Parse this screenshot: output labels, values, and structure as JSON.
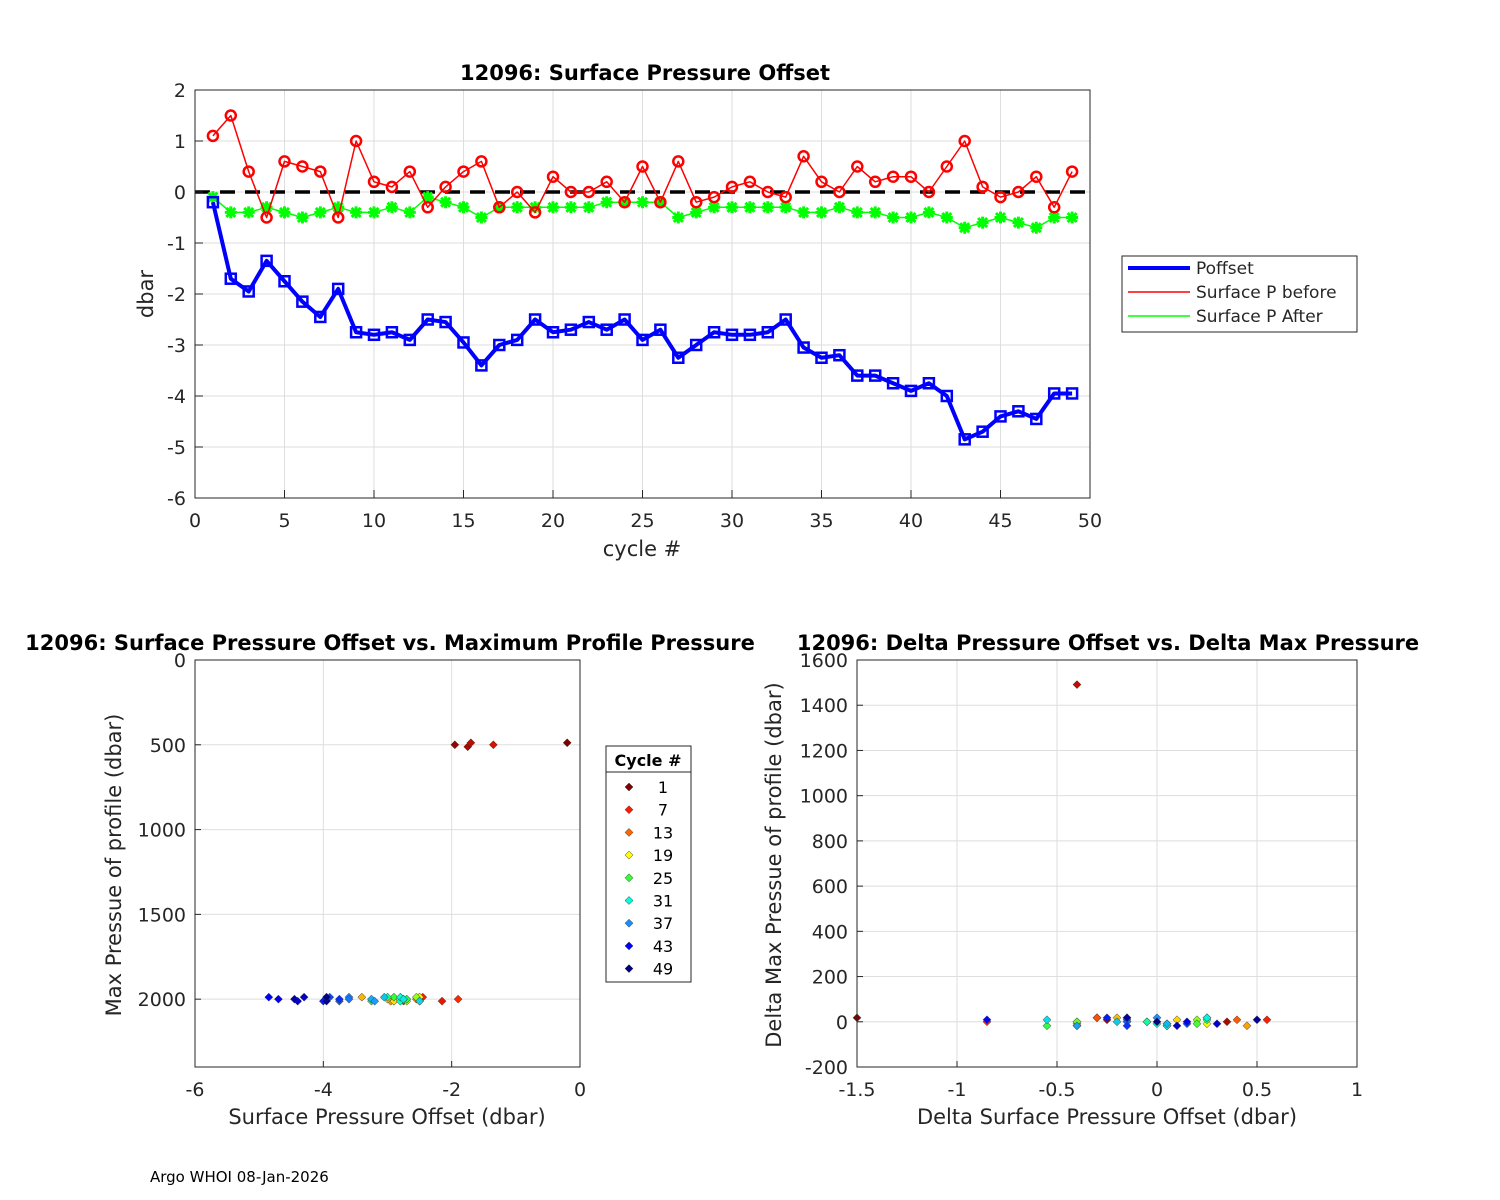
{
  "footer": "Argo WHOI 08-Jan-2026",
  "colors": {
    "poffset": "#0000ff",
    "before": "#ff0000",
    "after": "#00ff00",
    "zero_line": "#000000",
    "grid": "#dedede"
  },
  "chart_data": [
    {
      "id": "top",
      "type": "line",
      "title": "12096: Surface Pressure Offset",
      "xlabel": "cycle #",
      "ylabel": "dbar",
      "xlim": [
        0,
        50
      ],
      "ylim": [
        -6,
        2
      ],
      "xticks": [
        0,
        5,
        10,
        15,
        20,
        25,
        30,
        35,
        40,
        45,
        50
      ],
      "yticks": [
        2,
        1,
        0,
        -1,
        -2,
        -3,
        -4,
        -5,
        -6
      ],
      "legend": [
        "Poffset",
        "Surface P before",
        "Surface P After"
      ],
      "x": [
        1,
        2,
        3,
        4,
        5,
        6,
        7,
        8,
        9,
        10,
        11,
        12,
        13,
        14,
        15,
        16,
        17,
        18,
        19,
        20,
        21,
        22,
        23,
        24,
        25,
        26,
        27,
        28,
        29,
        30,
        31,
        32,
        33,
        34,
        35,
        36,
        37,
        38,
        39,
        40,
        41,
        42,
        43,
        44,
        45,
        46,
        47,
        48,
        49
      ],
      "series": [
        {
          "name": "Poffset",
          "values": [
            -0.2,
            -1.7,
            -1.95,
            -1.35,
            -1.75,
            -2.15,
            -2.45,
            -1.9,
            -2.75,
            -2.8,
            -2.75,
            -2.9,
            -2.5,
            -2.55,
            -2.95,
            -3.4,
            -3.0,
            -2.9,
            -2.5,
            -2.75,
            -2.7,
            -2.55,
            -2.7,
            -2.5,
            -2.9,
            -2.7,
            -3.25,
            -3.0,
            -2.75,
            -2.8,
            -2.8,
            -2.75,
            -2.5,
            -3.05,
            -3.25,
            -3.2,
            -3.6,
            -3.6,
            -3.75,
            -3.9,
            -3.75,
            -4.0,
            -4.85,
            -4.7,
            -4.4,
            -4.3,
            -4.45,
            -3.95,
            -3.95
          ]
        },
        {
          "name": "Surface P before",
          "values": [
            1.1,
            1.5,
            0.4,
            -0.5,
            0.6,
            0.5,
            0.4,
            -0.5,
            1.0,
            0.2,
            0.1,
            0.4,
            -0.3,
            0.1,
            0.4,
            0.6,
            -0.3,
            0.0,
            -0.4,
            0.3,
            0.0,
            0.0,
            0.2,
            -0.2,
            0.5,
            -0.2,
            0.6,
            -0.2,
            -0.1,
            0.1,
            0.2,
            0.0,
            -0.1,
            0.7,
            0.2,
            0.0,
            0.5,
            0.2,
            0.3,
            0.3,
            0.0,
            0.5,
            1.0,
            0.1,
            -0.1,
            0.0,
            0.3,
            -0.3,
            0.4
          ]
        },
        {
          "name": "Surface P After",
          "values": [
            -0.1,
            -0.4,
            -0.4,
            -0.3,
            -0.4,
            -0.5,
            -0.4,
            -0.3,
            -0.4,
            -0.4,
            -0.3,
            -0.4,
            -0.1,
            -0.2,
            -0.3,
            -0.5,
            -0.3,
            -0.3,
            -0.3,
            -0.3,
            -0.3,
            -0.3,
            -0.2,
            -0.2,
            -0.2,
            -0.2,
            -0.5,
            -0.4,
            -0.3,
            -0.3,
            -0.3,
            -0.3,
            -0.3,
            -0.4,
            -0.4,
            -0.3,
            -0.4,
            -0.4,
            -0.5,
            -0.5,
            -0.4,
            -0.5,
            -0.7,
            -0.6,
            -0.5,
            -0.6,
            -0.7,
            -0.5,
            -0.5
          ]
        }
      ],
      "reference_line": 0
    },
    {
      "id": "bottom_left",
      "type": "scatter",
      "title": "12096: Surface Pressure Offset vs. Maximum Profile Pressure",
      "xlabel": "Surface Pressure Offset (dbar)",
      "ylabel": "Max Pressue of profile (dbar)",
      "xlim": [
        -6,
        0
      ],
      "ylim": [
        0,
        2400
      ],
      "y_reversed": true,
      "xticks": [
        -6,
        -4,
        -2,
        0
      ],
      "yticks": [
        0,
        500,
        1000,
        1500,
        2000
      ],
      "legend_title": "Cycle #",
      "legend_cycles": [
        1,
        7,
        13,
        19,
        25,
        31,
        37,
        43,
        49
      ],
      "points": [
        {
          "x": -0.2,
          "y": 500
        },
        {
          "x": -1.95,
          "y": 500
        },
        {
          "x": -1.75,
          "y": 500
        },
        {
          "x": -1.7,
          "y": 500
        },
        {
          "x": -1.35,
          "y": 500
        },
        {
          "x": -2.15,
          "y": 2000
        },
        {
          "x": -2.45,
          "y": 2000
        },
        {
          "x": -1.9,
          "y": 2000
        },
        {
          "x": -2.75,
          "y": 2000
        },
        {
          "x": -2.8,
          "y": 2000
        },
        {
          "x": -2.75,
          "y": 2000
        },
        {
          "x": -2.9,
          "y": 2000
        },
        {
          "x": -2.5,
          "y": 2000
        },
        {
          "x": -2.55,
          "y": 2000
        },
        {
          "x": -2.95,
          "y": 2000
        },
        {
          "x": -3.4,
          "y": 2000
        },
        {
          "x": -3.0,
          "y": 2000
        },
        {
          "x": -2.9,
          "y": 2000
        },
        {
          "x": -2.5,
          "y": 2000
        },
        {
          "x": -2.75,
          "y": 2000
        },
        {
          "x": -2.7,
          "y": 2000
        },
        {
          "x": -2.55,
          "y": 2000
        },
        {
          "x": -2.7,
          "y": 2000
        },
        {
          "x": -2.5,
          "y": 2000
        },
        {
          "x": -2.9,
          "y": 2000
        },
        {
          "x": -2.7,
          "y": 2000
        },
        {
          "x": -3.25,
          "y": 2000
        },
        {
          "x": -3.0,
          "y": 2000
        },
        {
          "x": -2.75,
          "y": 2000
        },
        {
          "x": -2.8,
          "y": 2000
        },
        {
          "x": -2.8,
          "y": 2000
        },
        {
          "x": -2.75,
          "y": 2000
        },
        {
          "x": -2.5,
          "y": 2000
        },
        {
          "x": -3.05,
          "y": 2000
        },
        {
          "x": -3.25,
          "y": 2000
        },
        {
          "x": -3.2,
          "y": 2000
        },
        {
          "x": -3.6,
          "y": 2000
        },
        {
          "x": -3.6,
          "y": 2000
        },
        {
          "x": -3.75,
          "y": 2000
        },
        {
          "x": -3.9,
          "y": 2000
        },
        {
          "x": -3.75,
          "y": 2000
        },
        {
          "x": -4.0,
          "y": 2000
        },
        {
          "x": -4.85,
          "y": 2000
        },
        {
          "x": -4.7,
          "y": 2000
        },
        {
          "x": -4.4,
          "y": 2000
        },
        {
          "x": -4.3,
          "y": 2000
        },
        {
          "x": -4.45,
          "y": 2000
        },
        {
          "x": -3.95,
          "y": 2000
        },
        {
          "x": -3.95,
          "y": 2000
        }
      ]
    },
    {
      "id": "bottom_right",
      "type": "scatter",
      "title": "12096: Delta Pressure Offset vs. Delta Max Pressure",
      "xlabel": "Delta Surface Pressure Offset (dbar)",
      "ylabel": "Delta Max Pressue of profile (dbar)",
      "xlim": [
        -1.5,
        1
      ],
      "ylim": [
        -200,
        1600
      ],
      "xticks": [
        -1.5,
        -1,
        -0.5,
        0,
        0.5,
        1
      ],
      "xtick_labels": [
        "-1.5",
        "-1",
        "-0.5",
        "0",
        "0.5",
        "1"
      ],
      "yticks": [
        1600,
        1400,
        1200,
        1000,
        800,
        600,
        400,
        200,
        0,
        -200
      ],
      "points": [
        {
          "x": -1.5,
          "y": 0
        },
        {
          "x": -0.25,
          "y": 0
        },
        {
          "x": 0.35,
          "y": 0
        },
        {
          "x": -0.4,
          "y": 1500
        },
        {
          "x": -0.4,
          "y": 0
        },
        {
          "x": -0.3,
          "y": 0
        },
        {
          "x": 0.55,
          "y": 0
        },
        {
          "x": -0.85,
          "y": 0
        },
        {
          "x": 0.05,
          "y": 0
        },
        {
          "x": 0.05,
          "y": 0
        },
        {
          "x": -0.3,
          "y": 0
        },
        {
          "x": 0.4,
          "y": 0
        },
        {
          "x": -0.05,
          "y": 0
        },
        {
          "x": -0.4,
          "y": 0
        },
        {
          "x": 0.45,
          "y": 0
        },
        {
          "x": -0.2,
          "y": 0
        },
        {
          "x": 0.1,
          "y": 0
        },
        {
          "x": -0.4,
          "y": 0
        },
        {
          "x": 0.25,
          "y": 0
        },
        {
          "x": 0.05,
          "y": 0
        },
        {
          "x": -0.15,
          "y": 0
        },
        {
          "x": 0.2,
          "y": 0
        },
        {
          "x": -0.4,
          "y": 0
        },
        {
          "x": 0.2,
          "y": 0
        },
        {
          "x": -0.55,
          "y": 0
        },
        {
          "x": 0.25,
          "y": 0
        },
        {
          "x": 0.25,
          "y": 0
        },
        {
          "x": -0.05,
          "y": 0
        },
        {
          "x": 0.0,
          "y": 0
        },
        {
          "x": 0.05,
          "y": 0
        },
        {
          "x": 0.25,
          "y": 0
        },
        {
          "x": -0.55,
          "y": 0
        },
        {
          "x": -0.2,
          "y": 0
        },
        {
          "x": 0.05,
          "y": 0
        },
        {
          "x": -0.4,
          "y": 0
        },
        {
          "x": 0.0,
          "y": 0
        },
        {
          "x": -0.15,
          "y": 0
        },
        {
          "x": -0.15,
          "y": 0
        },
        {
          "x": 0.15,
          "y": 0
        },
        {
          "x": -0.15,
          "y": 0
        },
        {
          "x": -0.25,
          "y": 0
        },
        {
          "x": -0.85,
          "y": 0
        },
        {
          "x": 0.15,
          "y": 0
        },
        {
          "x": 0.3,
          "y": 0
        },
        {
          "x": 0.1,
          "y": 0
        },
        {
          "x": -0.15,
          "y": 0
        },
        {
          "x": 0.5,
          "y": 0
        },
        {
          "x": 0.0,
          "y": 0
        }
      ]
    }
  ]
}
